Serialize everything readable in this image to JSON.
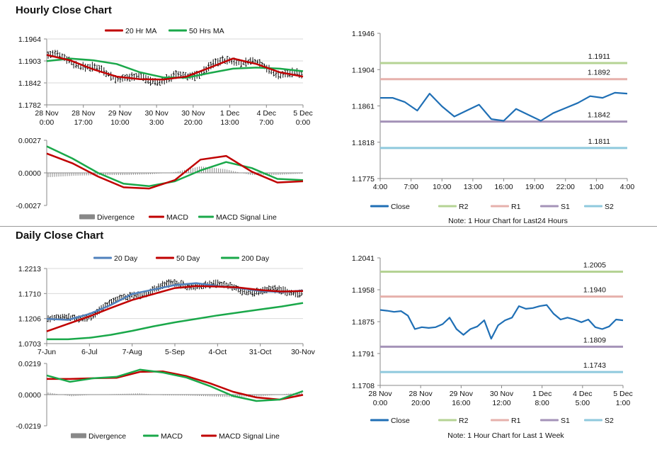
{
  "sections": {
    "hourly_title": "Hourly Close Chart",
    "daily_title": "Daily Close Chart"
  },
  "colors": {
    "ma20_red": "#c00000",
    "ma50_green": "#1aa84a",
    "ma20_blue": "#4f81bd",
    "close_blue": "#1f6fb5",
    "r2": "#b5d394",
    "r1": "#e6b1ac",
    "s1": "#a493b8",
    "s2": "#8fc9dd",
    "divergence": "#888888",
    "grid": "#d9d9d9",
    "axis": "#888888"
  },
  "chart_data": [
    {
      "id": "hourly-price",
      "type": "line",
      "legend": [
        "20 Hr MA",
        "50 Hrs MA"
      ],
      "yticks": [
        "1.1964",
        "1.1903",
        "1.1842",
        "1.1782"
      ],
      "ylim": [
        1.1782,
        1.1964
      ],
      "xticks": [
        [
          "28 Nov",
          "0:00"
        ],
        [
          "28 Nov",
          "17:00"
        ],
        [
          "29 Nov",
          "10:00"
        ],
        [
          "30 Nov",
          "3:00"
        ],
        [
          "30 Nov",
          "20:00"
        ],
        [
          "1 Dec",
          "13:00"
        ],
        [
          "4 Dec",
          "7:00"
        ],
        [
          "5 Dec",
          "0:00"
        ]
      ],
      "series": [
        {
          "name": "20 Hr MA",
          "values": [
            1.192,
            1.1905,
            1.188,
            1.186,
            1.1853,
            1.1852,
            1.186,
            1.1885,
            1.191,
            1.1895,
            1.1872,
            1.186
          ]
        },
        {
          "name": "50 Hrs MA",
          "values": [
            1.1903,
            1.191,
            1.1905,
            1.1895,
            1.1872,
            1.1858,
            1.1857,
            1.187,
            1.1882,
            1.1885,
            1.1882,
            1.1875
          ]
        }
      ],
      "candles": {
        "start": 1.19,
        "end": 1.1875,
        "count": 110
      }
    },
    {
      "id": "hourly-macd",
      "type": "line",
      "legend": [
        "Divergence",
        "MACD",
        "MACD Signal Line"
      ],
      "yticks": [
        "0.0027",
        "0.0000",
        "-0.0027"
      ],
      "ylim": [
        -0.0027,
        0.0027
      ],
      "series": [
        {
          "name": "MACD",
          "values": [
            0.0016,
            0.0008,
            -0.0003,
            -0.0012,
            -0.0013,
            -0.0006,
            0.0011,
            0.0014,
            0.0001,
            -0.0008,
            -0.0007
          ]
        },
        {
          "name": "MACD Signal Line",
          "values": [
            0.0022,
            0.0012,
            0.0,
            -0.0009,
            -0.0011,
            -0.0007,
            0.0002,
            0.0009,
            0.0004,
            -0.0005,
            -0.0006
          ]
        }
      ]
    },
    {
      "id": "hourly-close",
      "type": "line",
      "yticks": [
        "1.1946",
        "1.1904",
        "1.1861",
        "1.1818",
        "1.1775"
      ],
      "ylim": [
        1.1775,
        1.1946
      ],
      "xticks": [
        "4:00",
        "7:00",
        "10:00",
        "13:00",
        "16:00",
        "19:00",
        "22:00",
        "1:00",
        "4:00"
      ],
      "levels": [
        {
          "name": "R2",
          "value": 1.1911,
          "label": "1.1911"
        },
        {
          "name": "R1",
          "value": 1.1892,
          "label": "1.1892"
        },
        {
          "name": "S1",
          "value": 1.1842,
          "label": "1.1842"
        },
        {
          "name": "S2",
          "value": 1.1811,
          "label": "1.1811"
        }
      ],
      "series": [
        {
          "name": "Close",
          "values": [
            1.187,
            1.187,
            1.1865,
            1.1855,
            1.1875,
            1.186,
            1.1848,
            1.1855,
            1.1862,
            1.1845,
            1.1843,
            1.1857,
            1.185,
            1.1843,
            1.1852,
            1.1858,
            1.1864,
            1.1872,
            1.187,
            1.1876,
            1.1875
          ]
        }
      ],
      "legend": [
        "Close",
        "R2",
        "R1",
        "S1",
        "S2"
      ],
      "note": "Note: 1 Hour Chart for Last24 Hours"
    },
    {
      "id": "daily-price",
      "type": "line",
      "legend": [
        "20 Day",
        "50 Day",
        "200 Day"
      ],
      "yticks": [
        "1.2213",
        "1.1710",
        "1.1206",
        "1.0703"
      ],
      "ylim": [
        1.0703,
        1.2213
      ],
      "xticks": [
        "7-Jun",
        "6-Jul",
        "7-Aug",
        "5-Sep",
        "4-Oct",
        "31-Oct",
        "30-Nov"
      ],
      "series": [
        {
          "name": "20 Day",
          "values": [
            1.12,
            1.118,
            1.13,
            1.148,
            1.17,
            1.179,
            1.188,
            1.192,
            1.186,
            1.182,
            1.176,
            1.174,
            1.177
          ]
        },
        {
          "name": "50 Day",
          "values": [
            1.095,
            1.11,
            1.125,
            1.142,
            1.158,
            1.17,
            1.182,
            1.186,
            1.185,
            1.183,
            1.178,
            1.175,
            1.176
          ]
        },
        {
          "name": "200 Day",
          "values": [
            1.079,
            1.079,
            1.082,
            1.088,
            1.096,
            1.105,
            1.113,
            1.12,
            1.127,
            1.133,
            1.139,
            1.145,
            1.152
          ]
        }
      ],
      "candles": {
        "count": 125
      }
    },
    {
      "id": "daily-macd",
      "type": "line",
      "legend": [
        "Divergence",
        "MACD",
        "MACD Signal Line"
      ],
      "yticks": [
        "0.0219",
        "0.0000",
        "-0.0219"
      ],
      "ylim": [
        -0.0219,
        0.0219
      ],
      "series": [
        {
          "name": "MACD",
          "values": [
            0.0135,
            0.009,
            0.0115,
            0.0125,
            0.0175,
            0.0155,
            0.012,
            0.006,
            -0.001,
            -0.0045,
            -0.0035,
            0.0025
          ]
        },
        {
          "name": "MACD Signal Line",
          "values": [
            0.011,
            0.011,
            0.0115,
            0.0118,
            0.016,
            0.0163,
            0.013,
            0.008,
            0.002,
            -0.002,
            -0.0035,
            -0.0002
          ]
        }
      ]
    },
    {
      "id": "daily-close",
      "type": "line",
      "yticks": [
        "1.2041",
        "1.1958",
        "1.1875",
        "1.1791",
        "1.1708"
      ],
      "ylim": [
        1.1708,
        1.2041
      ],
      "xticks": [
        [
          "28 Nov",
          "0:00"
        ],
        [
          "28 Nov",
          "20:00"
        ],
        [
          "29 Nov",
          "16:00"
        ],
        [
          "30 Nov",
          "12:00"
        ],
        [
          "1 Dec",
          "8:00"
        ],
        [
          "4 Dec",
          "5:00"
        ],
        [
          "5 Dec",
          "1:00"
        ]
      ],
      "levels": [
        {
          "name": "R2",
          "value": 1.2005,
          "label": "1.2005"
        },
        {
          "name": "R1",
          "value": 1.194,
          "label": "1.1940"
        },
        {
          "name": "S1",
          "value": 1.1809,
          "label": "1.1809"
        },
        {
          "name": "S2",
          "value": 1.1743,
          "label": "1.1743"
        }
      ],
      "series": [
        {
          "name": "Close",
          "values": [
            1.1905,
            1.1903,
            1.19,
            1.1902,
            1.189,
            1.1855,
            1.186,
            1.1858,
            1.186,
            1.1868,
            1.1885,
            1.1855,
            1.184,
            1.1855,
            1.1862,
            1.1878,
            1.183,
            1.1865,
            1.1878,
            1.1885,
            1.1915,
            1.1908,
            1.191,
            1.1915,
            1.1918,
            1.1895,
            1.188,
            1.1885,
            1.188,
            1.1873,
            1.188,
            1.186,
            1.1855,
            1.1862,
            1.188,
            1.1878
          ]
        }
      ],
      "legend": [
        "Close",
        "R2",
        "R1",
        "S1",
        "S2"
      ],
      "note": "Note: 1 Hour Chart for Last 1 Week"
    }
  ]
}
